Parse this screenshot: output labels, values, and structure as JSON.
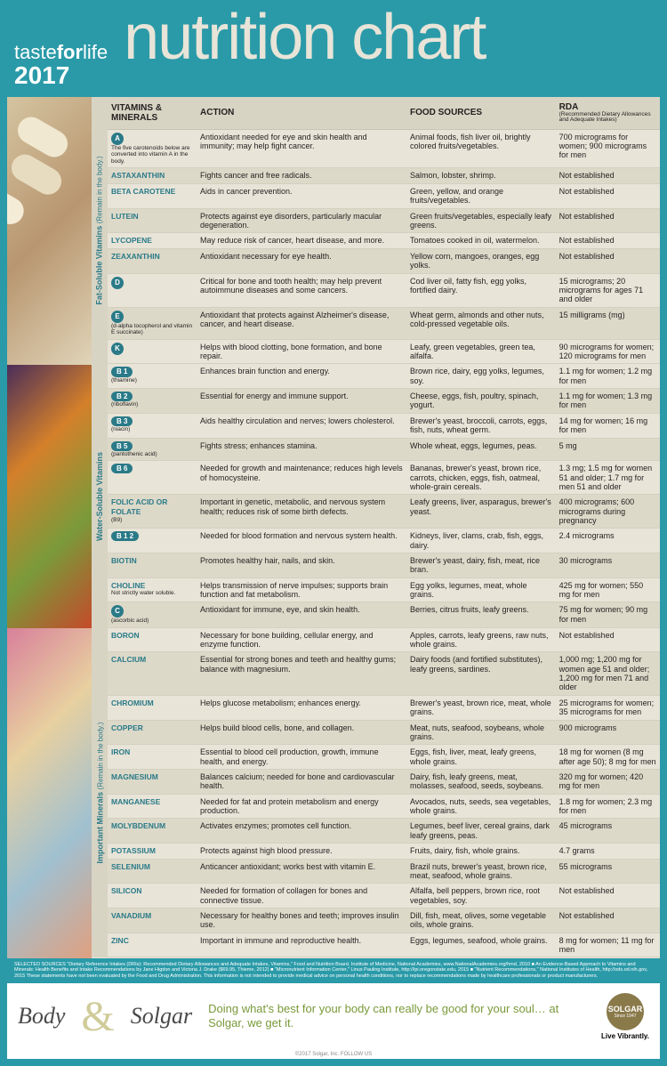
{
  "header": {
    "brand1": "taste",
    "brand2": "for",
    "brand3": "life",
    "year": "2017",
    "title": "nutrition chart"
  },
  "columns": {
    "vit": "VITAMINS & MINERALS",
    "action": "ACTION",
    "food": "FOOD SOURCES",
    "rda": "RDA",
    "rda_sub": "(Recommended Dietary Allowances and Adequate Intakes)"
  },
  "sections": [
    {
      "label": "Fat-Soluble Vitamins",
      "label_sub": "(Remain in the body.)",
      "imgclass": "capsules",
      "rows": [
        {
          "badge": "A",
          "circle": true,
          "sub": "The five carotenoids below are converted into vitamin A in the body.",
          "action": "Antioxidant needed for eye and skin health and immunity; may help fight cancer.",
          "food": "Animal foods, fish liver oil, brightly colored fruits/vegetables.",
          "rda": "700 micrograms for women; 900 micrograms for men"
        },
        {
          "name": "ASTAXANTHIN",
          "action": "Fights cancer and free radicals.",
          "food": "Salmon, lobster, shrimp.",
          "rda": "Not established"
        },
        {
          "name": "BETA CAROTENE",
          "action": "Aids in cancer prevention.",
          "food": "Green, yellow, and orange fruits/vegetables.",
          "rda": "Not established"
        },
        {
          "name": "LUTEIN",
          "action": "Protects against eye disorders, particularly macular degeneration.",
          "food": "Green fruits/vegetables, especially leafy greens.",
          "rda": "Not established"
        },
        {
          "name": "LYCOPENE",
          "action": "May reduce risk of cancer, heart disease, and more.",
          "food": "Tomatoes cooked in oil, watermelon.",
          "rda": "Not established"
        },
        {
          "name": "ZEAXANTHIN",
          "action": "Antioxidant necessary for eye health.",
          "food": "Yellow corn, mangoes, oranges, egg yolks.",
          "rda": "Not established"
        },
        {
          "badge": "D",
          "circle": true,
          "action": "Critical for bone and tooth health; may help prevent autoimmune diseases and some cancers.",
          "food": "Cod liver oil, fatty fish, egg yolks, fortified dairy.",
          "rda": "15 micrograms; 20 micrograms for ages 71 and older"
        },
        {
          "badge": "E",
          "circle": true,
          "sub": "(d-alpha tocopherol and vitamin E succinate)",
          "action": "Antioxidant that protects against Alzheimer's disease, cancer, and heart disease.",
          "food": "Wheat germ, almonds and other nuts, cold-pressed vegetable oils.",
          "rda": "15 milligrams (mg)"
        },
        {
          "badge": "K",
          "circle": true,
          "action": "Helps with blood clotting, bone formation, and bone repair.",
          "food": "Leafy, green vegetables, green tea, alfalfa.",
          "rda": "90 micrograms for women; 120 micrograms for men"
        }
      ]
    },
    {
      "label": "Water-Soluble Vitamins",
      "label_sub": "",
      "imgclass": "veggies",
      "rows": [
        {
          "badge": "B 1",
          "sub": "(thiamine)",
          "action": "Enhances brain function and energy.",
          "food": "Brown rice, dairy, egg yolks, legumes, soy.",
          "rda": "1.1 mg for women; 1.2 mg for men"
        },
        {
          "badge": "B 2",
          "sub": "(riboflavin)",
          "action": "Essential for energy and immune support.",
          "food": "Cheese, eggs, fish, poultry, spinach, yogurt.",
          "rda": "1.1 mg for women; 1.3 mg for men"
        },
        {
          "badge": "B 3",
          "sub": "(niacin)",
          "action": "Aids healthy circulation and nerves; lowers cholesterol.",
          "food": "Brewer's yeast, broccoli, carrots, eggs, fish, nuts, wheat germ.",
          "rda": "14 mg for women; 16 mg for men"
        },
        {
          "badge": "B 5",
          "sub": "(pantothenic acid)",
          "action": "Fights stress; enhances stamina.",
          "food": "Whole wheat, eggs, legumes, peas.",
          "rda": "5 mg"
        },
        {
          "badge": "B 6",
          "action": "Needed for growth and maintenance; reduces high levels of homocysteine.",
          "food": "Bananas, brewer's yeast, brown rice, carrots, chicken, eggs, fish, oatmeal, whole-grain cereals.",
          "rda": "1.3 mg; 1.5 mg for women 51 and older; 1.7 mg for men 51 and older"
        },
        {
          "name": "FOLIC ACID OR FOLATE",
          "sub": "(B9)",
          "action": "Important in genetic, metabolic, and nervous system health; reduces risk of some birth defects.",
          "food": "Leafy greens, liver, asparagus, brewer's yeast.",
          "rda": "400 micrograms; 600 micrograms during pregnancy"
        },
        {
          "badge": "B 1 2",
          "action": "Needed for blood formation and nervous system health.",
          "food": "Kidneys, liver, clams, crab, fish, eggs, dairy.",
          "rda": "2.4 micrograms"
        },
        {
          "name": "BIOTIN",
          "action": "Promotes healthy hair, nails, and skin.",
          "food": "Brewer's yeast, dairy, fish, meat, rice bran.",
          "rda": "30 micrograms"
        },
        {
          "name": "CHOLINE",
          "sub": "Not strictly water soluble.",
          "action": "Helps transmission of nerve impulses; supports brain function and fat metabolism.",
          "food": "Egg yolks, legumes, meat, whole grains.",
          "rda": "425 mg for women; 550 mg for men"
        },
        {
          "badge": "C",
          "circle": true,
          "sub": "(ascorbic acid)",
          "action": "Antioxidant for immune, eye, and skin health.",
          "food": "Berries, citrus fruits, leafy greens.",
          "rda": "75 mg for women; 90 mg for men"
        }
      ]
    },
    {
      "label": "Important Minerals",
      "label_sub": "(Remain in the body.)",
      "imgclass": "pills",
      "rows": [
        {
          "name": "BORON",
          "action": "Necessary for bone building, cellular energy, and enzyme function.",
          "food": "Apples, carrots, leafy greens, raw nuts, whole grains.",
          "rda": "Not established"
        },
        {
          "name": "CALCIUM",
          "action": "Essential for strong bones and teeth and healthy gums; balance with magnesium.",
          "food": "Dairy foods (and fortified substitutes), leafy greens, sardines.",
          "rda": "1,000 mg; 1,200 mg for women age 51 and older; 1,200 mg for men 71 and older"
        },
        {
          "name": "CHROMIUM",
          "action": "Helps glucose metabolism; enhances energy.",
          "food": "Brewer's yeast, brown rice, meat, whole grains.",
          "rda": "25 micrograms for women; 35 micrograms for men"
        },
        {
          "name": "COPPER",
          "action": "Helps build blood cells, bone, and collagen.",
          "food": "Meat, nuts, seafood, soybeans, whole grains.",
          "rda": "900 micrograms"
        },
        {
          "name": "IRON",
          "action": "Essential to blood cell production, growth, immune health, and energy.",
          "food": "Eggs, fish, liver, meat, leafy greens, whole grains.",
          "rda": "18 mg for women (8 mg after age 50); 8 mg for men"
        },
        {
          "name": "MAGNESIUM",
          "action": "Balances calcium; needed for bone and cardiovascular health.",
          "food": "Dairy, fish, leafy greens, meat, molasses, seafood, seeds, soybeans.",
          "rda": "320 mg for women; 420 mg for men"
        },
        {
          "name": "MANGANESE",
          "action": "Needed for fat and protein metabolism and energy production.",
          "food": "Avocados, nuts, seeds, sea vegetables, whole grains.",
          "rda": "1.8 mg for women; 2.3 mg for men"
        },
        {
          "name": "MOLYBDENUM",
          "action": "Activates enzymes; promotes cell function.",
          "food": "Legumes, beef liver, cereal grains, dark leafy greens, peas.",
          "rda": "45 micrograms"
        },
        {
          "name": "POTASSIUM",
          "action": "Protects against high blood pressure.",
          "food": "Fruits, dairy, fish, whole grains.",
          "rda": "4.7 grams"
        },
        {
          "name": "SELENIUM",
          "action": "Anticancer antioxidant; works best with vitamin E.",
          "food": "Brazil nuts, brewer's yeast, brown rice, meat, seafood, whole grains.",
          "rda": "55 micrograms"
        },
        {
          "name": "SILICON",
          "action": "Needed for formation of collagen for bones and connective tissue.",
          "food": "Alfalfa, bell peppers, brown rice, root vegetables, soy.",
          "rda": "Not established"
        },
        {
          "name": "VANADIUM",
          "action": "Necessary for healthy bones and teeth; improves insulin use.",
          "food": "Dill, fish, meat, olives, some vegetable oils, whole grains.",
          "rda": "Not established"
        },
        {
          "name": "ZINC",
          "action": "Important in immune and reproductive health.",
          "food": "Eggs, legumes, seafood, whole grains.",
          "rda": "8 mg for women; 11 mg for men"
        }
      ]
    }
  ],
  "sources": "SELECTED SOURCES  \"Dietary Reference Intakes (DRIs): Recommended Dietary Allowances and Adequate Intakes, Vitamins,\" Food and Nutrition Board, Institute of Medicine, National Academies, www.NationalAcademies.org/hmd, 2010 ■ An Evidence-Based Approach to Vitamins and Minerals: Health Benefits and Intake Recommendations by Jane Higdon and Victoria J. Drake ($69.95, Thieme, 2012) ■ \"Micronutrient Information Center,\" Linus Pauling Institute, http://lpi.oregonstate.edu, 2015 ■ \"Nutrient Recommendations,\" National Institutes of Health, http://ods.od.nih.gov, 2015\nThese statements have not been evaluated by the Food and Drug Administration. This information is not intended to provide medical advice on personal health conditions, nor to replace recommendations made by healthcare professionals or product manufacturers.",
  "footer": {
    "script1": "Body",
    "amp": "&",
    "script2": "Solgar",
    "tagline": "Doing what's best for your body can really be good for your soul… at Solgar, we get it.",
    "logo": "SOLGAR",
    "since": "Since 1947",
    "vib": "Live Vibrantly.",
    "follow": "©2017 Solgar, Inc.    FOLLOW US"
  }
}
